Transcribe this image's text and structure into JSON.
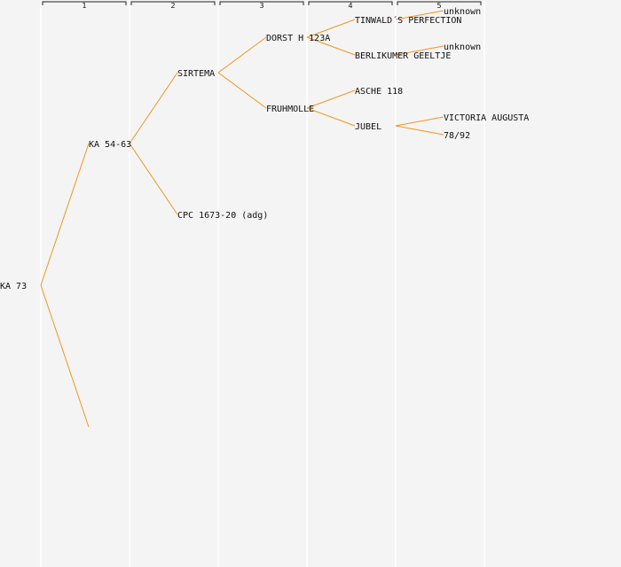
{
  "generations": [
    "1",
    "2",
    "3",
    "4",
    "5"
  ],
  "colors": {
    "background": "#f4f4f4",
    "edge": "#f0961e",
    "column_line": "#ffffff",
    "text": "#111111"
  },
  "nodes": [
    {
      "id": "ka73",
      "gen": 0,
      "row": 16,
      "label": "KA 73"
    },
    {
      "id": "ka5463",
      "gen": 1,
      "row": 8,
      "label": "KA 54-63"
    },
    {
      "id": "dam1",
      "gen": 1,
      "row": 24,
      "label": ""
    },
    {
      "id": "sirtema",
      "gen": 2,
      "row": 4,
      "label": "SIRTEMA"
    },
    {
      "id": "cpc",
      "gen": 2,
      "row": 12,
      "label": "CPC 1673-20 (adg)"
    },
    {
      "id": "dorst",
      "gen": 3,
      "row": 2,
      "label": "DORST H 123A"
    },
    {
      "id": "fruhmolle",
      "gen": 3,
      "row": 6,
      "label": "FRUHMOLLE"
    },
    {
      "id": "tinwald",
      "gen": 4,
      "row": 1,
      "label": "TINWALD´S PERFECTION"
    },
    {
      "id": "berlikumer",
      "gen": 4,
      "row": 3,
      "label": "BERLIKUMER GEELTJE"
    },
    {
      "id": "asche",
      "gen": 4,
      "row": 5,
      "label": "ASCHE 118"
    },
    {
      "id": "jubel",
      "gen": 4,
      "row": 7,
      "label": "JUBEL"
    },
    {
      "id": "unk1",
      "gen": 5,
      "row": 0.5,
      "label": "unknown"
    },
    {
      "id": "unk2",
      "gen": 5,
      "row": 2.5,
      "label": "unknown"
    },
    {
      "id": "victoria",
      "gen": 5,
      "row": 6.5,
      "label": "VICTORIA AUGUSTA"
    },
    {
      "id": "n7892",
      "gen": 5,
      "row": 7.5,
      "label": "78/92"
    }
  ],
  "edges": [
    [
      "ka73",
      "ka5463"
    ],
    [
      "ka73",
      "dam1"
    ],
    [
      "ka5463",
      "sirtema"
    ],
    [
      "ka5463",
      "cpc"
    ],
    [
      "sirtema",
      "dorst"
    ],
    [
      "sirtema",
      "fruhmolle"
    ],
    [
      "dorst",
      "tinwald"
    ],
    [
      "dorst",
      "berlikumer"
    ],
    [
      "fruhmolle",
      "asche"
    ],
    [
      "fruhmolle",
      "jubel"
    ],
    [
      "tinwald",
      "unk1"
    ],
    [
      "berlikumer",
      "unk2"
    ],
    [
      "jubel",
      "victoria"
    ],
    [
      "jubel",
      "n7892"
    ]
  ]
}
